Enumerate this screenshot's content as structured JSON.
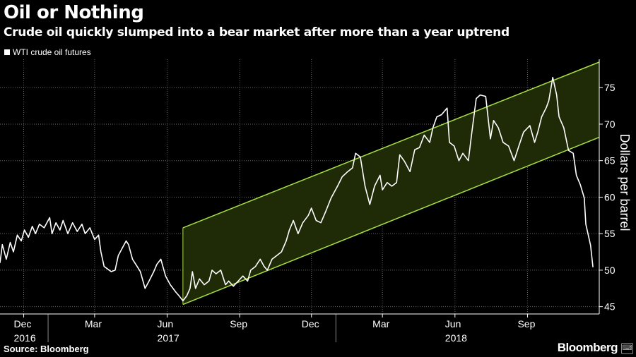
{
  "title": "Oil or Nothing",
  "subtitle": "Crude oil quickly slumped into a bear market after more than a year uptrend",
  "source": "Source: Bloomberg",
  "brand": "Bloomberg",
  "colors": {
    "line": "#ffffff",
    "channel": "#a8e040",
    "channel_fill": "#1f2a06",
    "grid": "#666666"
  },
  "chart_data": {
    "type": "line",
    "title": "Oil or Nothing",
    "subtitle": "Crude oil quickly slumped into a bear market after more than a year uptrend",
    "ylabel": "Dollars per barrel",
    "ylim": [
      44,
      78.5
    ],
    "yticks": [
      45,
      50,
      55,
      60,
      65,
      70,
      75
    ],
    "y_axis_position": "right",
    "grid": true,
    "legend_position": "top-left",
    "xticks": [
      {
        "date": "2016-12-01",
        "label": "Dec"
      },
      {
        "date": "2017-03-01",
        "label": "Mar"
      },
      {
        "date": "2017-06-01",
        "label": "Jun"
      },
      {
        "date": "2017-09-01",
        "label": "Sep"
      },
      {
        "date": "2017-12-01",
        "label": "Dec"
      },
      {
        "date": "2018-03-01",
        "label": "Mar"
      },
      {
        "date": "2018-06-01",
        "label": "Jun"
      },
      {
        "date": "2018-09-01",
        "label": "Sep"
      }
    ],
    "year_labels": [
      {
        "date": "2016-12-01",
        "label": "2016"
      },
      {
        "date": "2017-06-01",
        "label": "2017"
      },
      {
        "date": "2018-06-01",
        "label": "2018"
      }
    ],
    "xlim": [
      "2016-11-01",
      "2018-12-01"
    ],
    "series": [
      {
        "name": "WTI crude oil futures",
        "points": [
          [
            "2016-11-01",
            51.0
          ],
          [
            "2016-11-04",
            53.5
          ],
          [
            "2016-11-09",
            51.5
          ],
          [
            "2016-11-14",
            53.8
          ],
          [
            "2016-11-18",
            52.5
          ],
          [
            "2016-11-23",
            54.8
          ],
          [
            "2016-11-28",
            54.0
          ],
          [
            "2016-12-02",
            55.5
          ],
          [
            "2016-12-07",
            54.5
          ],
          [
            "2016-12-12",
            56.0
          ],
          [
            "2016-12-16",
            55.0
          ],
          [
            "2016-12-21",
            56.3
          ],
          [
            "2016-12-27",
            55.8
          ],
          [
            "2017-01-03",
            57.2
          ],
          [
            "2017-01-06",
            55.0
          ],
          [
            "2017-01-11",
            56.5
          ],
          [
            "2017-01-16",
            55.5
          ],
          [
            "2017-01-20",
            56.8
          ],
          [
            "2017-01-26",
            55.0
          ],
          [
            "2017-02-01",
            56.5
          ],
          [
            "2017-02-07",
            55.3
          ],
          [
            "2017-02-13",
            56.3
          ],
          [
            "2017-02-17",
            55.0
          ],
          [
            "2017-02-23",
            55.8
          ],
          [
            "2017-03-01",
            54.2
          ],
          [
            "2017-03-06",
            54.8
          ],
          [
            "2017-03-09",
            52.5
          ],
          [
            "2017-03-13",
            50.5
          ],
          [
            "2017-03-17",
            50.2
          ],
          [
            "2017-03-22",
            49.8
          ],
          [
            "2017-03-27",
            50.0
          ],
          [
            "2017-03-31",
            52.0
          ],
          [
            "2017-04-05",
            53.0
          ],
          [
            "2017-04-10",
            54.0
          ],
          [
            "2017-04-13",
            53.5
          ],
          [
            "2017-04-18",
            51.5
          ],
          [
            "2017-04-24",
            50.5
          ],
          [
            "2017-04-28",
            49.8
          ],
          [
            "2017-05-04",
            47.5
          ],
          [
            "2017-05-09",
            48.5
          ],
          [
            "2017-05-15",
            49.8
          ],
          [
            "2017-05-19",
            50.8
          ],
          [
            "2017-05-24",
            51.5
          ],
          [
            "2017-05-30",
            49.2
          ],
          [
            "2017-06-05",
            48.0
          ],
          [
            "2017-06-12",
            47.0
          ],
          [
            "2017-06-16",
            46.5
          ],
          [
            "2017-06-21",
            45.8
          ],
          [
            "2017-06-26",
            46.5
          ],
          [
            "2017-06-30",
            47.5
          ],
          [
            "2017-07-03",
            49.8
          ],
          [
            "2017-07-07",
            47.5
          ],
          [
            "2017-07-12",
            48.8
          ],
          [
            "2017-07-18",
            48.0
          ],
          [
            "2017-07-24",
            48.5
          ],
          [
            "2017-07-28",
            50.0
          ],
          [
            "2017-08-02",
            49.5
          ],
          [
            "2017-08-08",
            50.0
          ],
          [
            "2017-08-14",
            48.0
          ],
          [
            "2017-08-18",
            48.5
          ],
          [
            "2017-08-24",
            47.8
          ],
          [
            "2017-08-30",
            48.5
          ],
          [
            "2017-09-05",
            49.2
          ],
          [
            "2017-09-11",
            48.5
          ],
          [
            "2017-09-15",
            50.0
          ],
          [
            "2017-09-21",
            50.5
          ],
          [
            "2017-09-27",
            51.5
          ],
          [
            "2017-10-02",
            50.5
          ],
          [
            "2017-10-06",
            50.0
          ],
          [
            "2017-10-12",
            51.5
          ],
          [
            "2017-10-18",
            52.0
          ],
          [
            "2017-10-24",
            52.5
          ],
          [
            "2017-10-30",
            54.0
          ],
          [
            "2017-11-03",
            55.5
          ],
          [
            "2017-11-08",
            56.8
          ],
          [
            "2017-11-14",
            55.0
          ],
          [
            "2017-11-20",
            56.5
          ],
          [
            "2017-11-27",
            57.5
          ],
          [
            "2017-12-01",
            58.5
          ],
          [
            "2017-12-07",
            56.8
          ],
          [
            "2017-12-13",
            56.5
          ],
          [
            "2017-12-19",
            58.0
          ],
          [
            "2017-12-26",
            59.9
          ],
          [
            "2018-01-03",
            61.5
          ],
          [
            "2018-01-09",
            62.8
          ],
          [
            "2018-01-16",
            63.5
          ],
          [
            "2018-01-22",
            64.0
          ],
          [
            "2018-01-26",
            66.0
          ],
          [
            "2018-02-01",
            65.5
          ],
          [
            "2018-02-07",
            61.5
          ],
          [
            "2018-02-13",
            59.0
          ],
          [
            "2018-02-19",
            61.5
          ],
          [
            "2018-02-26",
            63.0
          ],
          [
            "2018-03-01",
            61.0
          ],
          [
            "2018-03-07",
            62.0
          ],
          [
            "2018-03-13",
            61.5
          ],
          [
            "2018-03-19",
            62.0
          ],
          [
            "2018-03-23",
            65.8
          ],
          [
            "2018-03-29",
            64.9
          ],
          [
            "2018-04-05",
            63.5
          ],
          [
            "2018-04-11",
            66.5
          ],
          [
            "2018-04-17",
            66.8
          ],
          [
            "2018-04-23",
            68.5
          ],
          [
            "2018-04-30",
            67.5
          ],
          [
            "2018-05-04",
            69.5
          ],
          [
            "2018-05-09",
            71.0
          ],
          [
            "2018-05-15",
            71.3
          ],
          [
            "2018-05-22",
            72.2
          ],
          [
            "2018-05-25",
            67.5
          ],
          [
            "2018-05-31",
            67.0
          ],
          [
            "2018-06-06",
            65.0
          ],
          [
            "2018-06-11",
            66.0
          ],
          [
            "2018-06-18",
            65.0
          ],
          [
            "2018-06-22",
            68.5
          ],
          [
            "2018-06-28",
            73.5
          ],
          [
            "2018-07-03",
            74.0
          ],
          [
            "2018-07-10",
            73.8
          ],
          [
            "2018-07-16",
            68.0
          ],
          [
            "2018-07-20",
            70.5
          ],
          [
            "2018-07-26",
            69.5
          ],
          [
            "2018-08-01",
            67.5
          ],
          [
            "2018-08-08",
            67.0
          ],
          [
            "2018-08-15",
            65.0
          ],
          [
            "2018-08-21",
            67.0
          ],
          [
            "2018-08-27",
            68.9
          ],
          [
            "2018-09-04",
            69.8
          ],
          [
            "2018-09-10",
            67.5
          ],
          [
            "2018-09-14",
            68.9
          ],
          [
            "2018-09-19",
            71.0
          ],
          [
            "2018-09-25",
            72.3
          ],
          [
            "2018-09-28",
            73.2
          ],
          [
            "2018-10-03",
            76.4
          ],
          [
            "2018-10-08",
            74.0
          ],
          [
            "2018-10-11",
            71.0
          ],
          [
            "2018-10-17",
            69.5
          ],
          [
            "2018-10-23",
            66.4
          ],
          [
            "2018-10-29",
            66.0
          ],
          [
            "2018-11-02",
            63.0
          ],
          [
            "2018-11-07",
            61.7
          ],
          [
            "2018-11-12",
            59.9
          ],
          [
            "2018-11-14",
            56.3
          ],
          [
            "2018-11-20",
            53.4
          ],
          [
            "2018-11-23",
            50.4
          ]
        ]
      }
    ],
    "channel": {
      "upper": [
        [
          "2017-06-21",
          55.8
        ],
        [
          "2018-12-01",
          78.5
        ]
      ],
      "lower": [
        [
          "2017-06-21",
          45.3
        ],
        [
          "2018-12-01",
          68.2
        ]
      ]
    }
  }
}
